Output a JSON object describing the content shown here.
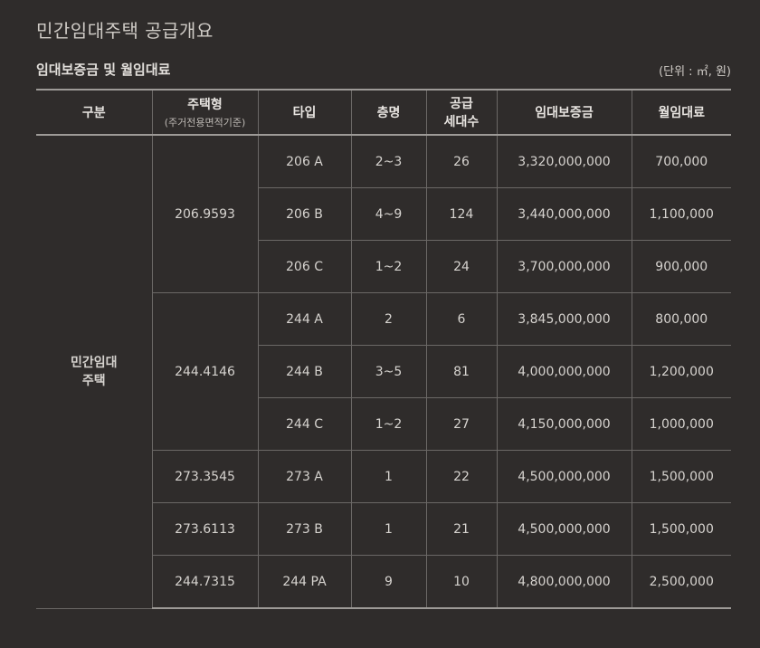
{
  "title": "민간임대주택 공급개요",
  "subtitle": "임대보증금 및 월임대료",
  "unit": "(단위 : ㎡, 원)",
  "headers": {
    "gubun": "구분",
    "housing_type": "주택형",
    "housing_type_sub": "(주거전용면적기준)",
    "type": "타입",
    "floors": "층명",
    "units_line1": "공급",
    "units_line2": "세대수",
    "deposit": "임대보증금",
    "monthly_rent": "월임대료"
  },
  "category": {
    "line1": "민간임대",
    "line2": "주택"
  },
  "groups": [
    {
      "housing_type": "206.9593",
      "rows": [
        {
          "type": "206 A",
          "floors": "2~3",
          "units": "26",
          "deposit": "3,320,000,000",
          "rent": "700,000"
        },
        {
          "type": "206 B",
          "floors": "4~9",
          "units": "124",
          "deposit": "3,440,000,000",
          "rent": "1,100,000"
        },
        {
          "type": "206 C",
          "floors": "1~2",
          "units": "24",
          "deposit": "3,700,000,000",
          "rent": "900,000"
        }
      ]
    },
    {
      "housing_type": "244.4146",
      "rows": [
        {
          "type": "244 A",
          "floors": "2",
          "units": "6",
          "deposit": "3,845,000,000",
          "rent": "800,000"
        },
        {
          "type": "244 B",
          "floors": "3~5",
          "units": "81",
          "deposit": "4,000,000,000",
          "rent": "1,200,000"
        },
        {
          "type": "244 C",
          "floors": "1~2",
          "units": "27",
          "deposit": "4,150,000,000",
          "rent": "1,000,000"
        }
      ]
    },
    {
      "housing_type": "273.3545",
      "rows": [
        {
          "type": "273 A",
          "floors": "1",
          "units": "22",
          "deposit": "4,500,000,000",
          "rent": "1,500,000"
        }
      ]
    },
    {
      "housing_type": "273.6113",
      "rows": [
        {
          "type": "273 B",
          "floors": "1",
          "units": "21",
          "deposit": "4,500,000,000",
          "rent": "1,500,000"
        }
      ]
    },
    {
      "housing_type": "244.7315",
      "rows": [
        {
          "type": "244 PA",
          "floors": "9",
          "units": "10",
          "deposit": "4,800,000,000",
          "rent": "2,500,000"
        }
      ]
    }
  ]
}
